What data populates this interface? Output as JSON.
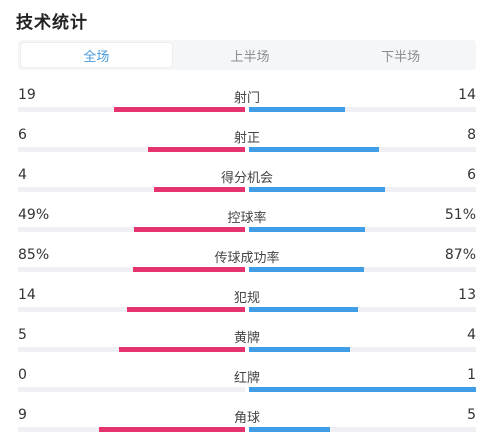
{
  "title": "技术统计",
  "tabs": [
    {
      "label": "全场",
      "active": true
    },
    {
      "label": "上半场",
      "active": false
    },
    {
      "label": "下半场",
      "active": false
    }
  ],
  "colors": {
    "home": "#e5336d",
    "away": "#3f9ee6",
    "active_tab": "#4a9bdc"
  },
  "stats": [
    {
      "label": "射门",
      "home": "19",
      "away": "14",
      "home_fraction": 0.576,
      "away_fraction": 0.424
    },
    {
      "label": "射正",
      "home": "6",
      "away": "8",
      "home_fraction": 0.429,
      "away_fraction": 0.571
    },
    {
      "label": "得分机会",
      "home": "4",
      "away": "6",
      "home_fraction": 0.4,
      "away_fraction": 0.6
    },
    {
      "label": "控球率",
      "home": "49%",
      "away": "51%",
      "home_fraction": 0.49,
      "away_fraction": 0.51
    },
    {
      "label": "传球成功率",
      "home": "85%",
      "away": "87%",
      "home_fraction": 0.494,
      "away_fraction": 0.506
    },
    {
      "label": "犯规",
      "home": "14",
      "away": "13",
      "home_fraction": 0.519,
      "away_fraction": 0.481
    },
    {
      "label": "黄牌",
      "home": "5",
      "away": "4",
      "home_fraction": 0.556,
      "away_fraction": 0.444
    },
    {
      "label": "红牌",
      "home": "0",
      "away": "1",
      "home_fraction": 0.0,
      "away_fraction": 1.0
    },
    {
      "label": "角球",
      "home": "9",
      "away": "5",
      "home_fraction": 0.643,
      "away_fraction": 0.357
    }
  ]
}
